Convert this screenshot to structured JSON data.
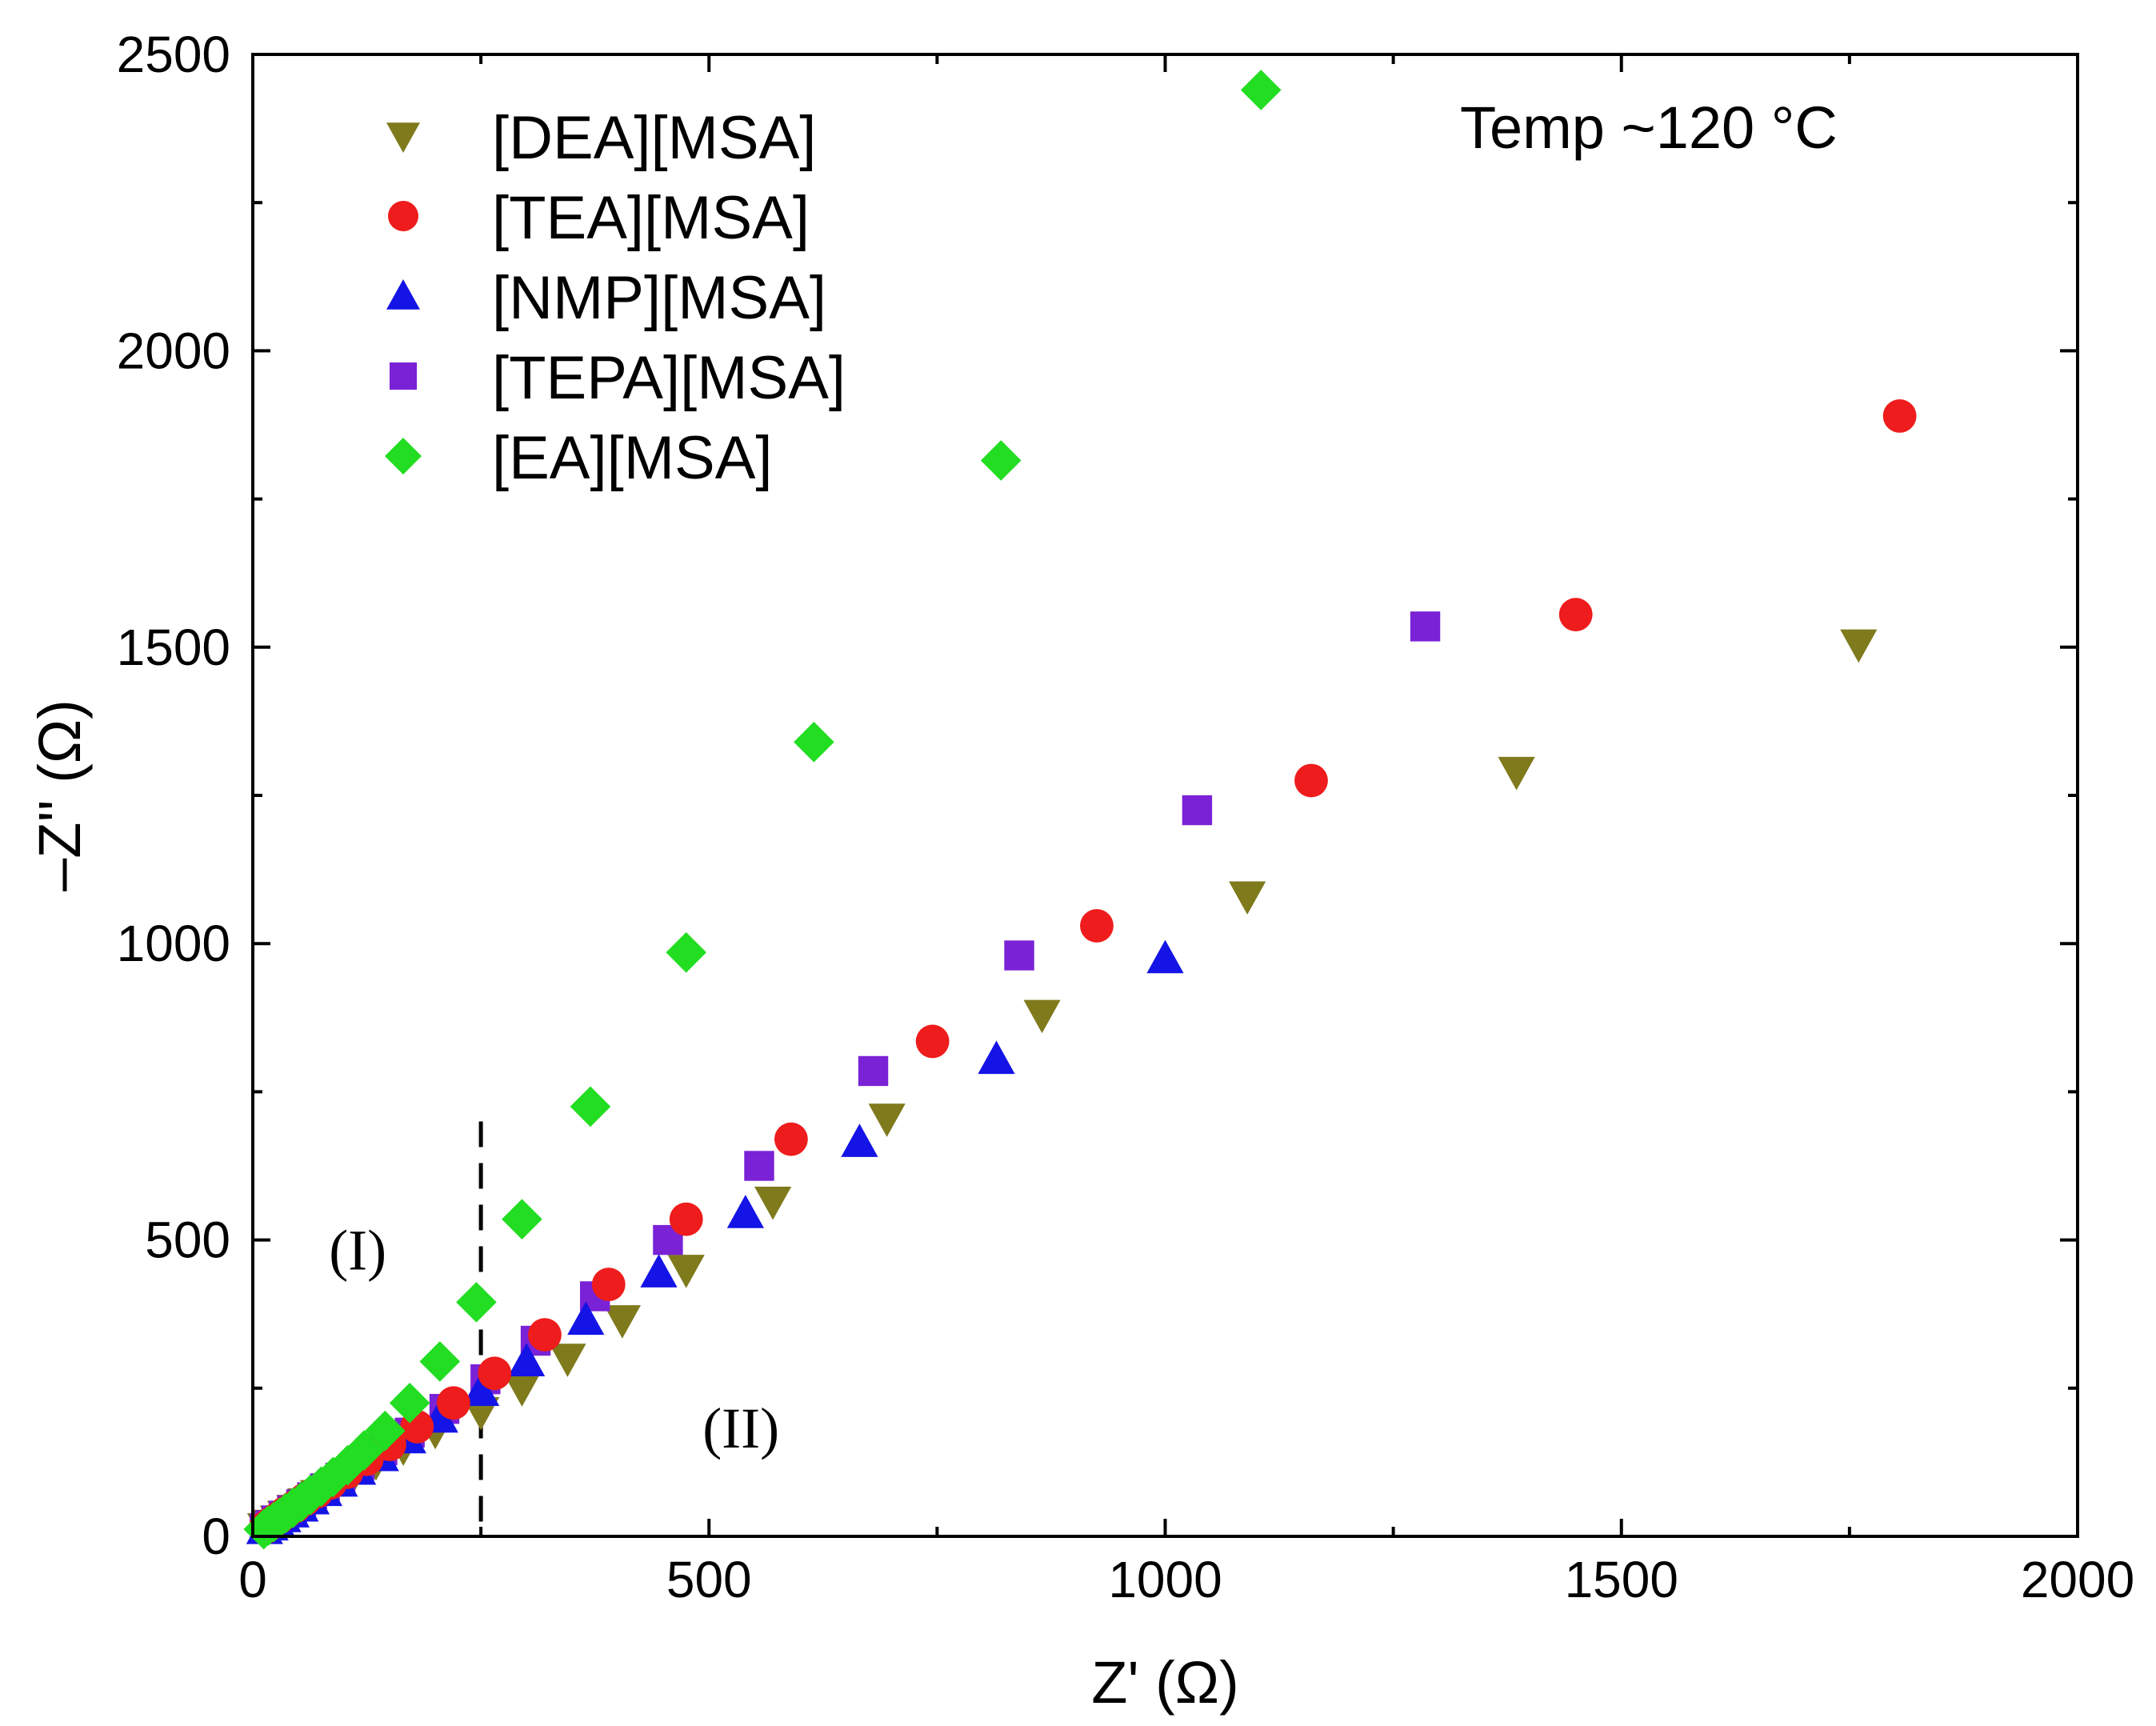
{
  "chart_data": {
    "type": "scatter",
    "title": "",
    "xlabel": "Z' (Ω)",
    "ylabel": "–Z'' (Ω)",
    "xlim": [
      0,
      2000
    ],
    "ylim": [
      0,
      2500
    ],
    "x_ticks": [
      "0",
      "500",
      "1000",
      "1500",
      "2000"
    ],
    "y_ticks": [
      "0",
      "500",
      "1000",
      "1500",
      "2000",
      "2500"
    ],
    "legend_position": "top-left",
    "annotation": "Temp ~120 °C",
    "divider_x": 250,
    "regions": [
      "(I)",
      "(II)"
    ],
    "series": [
      {
        "name": "[DEA][MSA]",
        "marker": "triangle-down",
        "color": "#7f7a1c",
        "points": [
          [
            1760,
            1505
          ],
          [
            1385,
            1290
          ],
          [
            1090,
            1080
          ],
          [
            865,
            880
          ],
          [
            695,
            705
          ],
          [
            570,
            565
          ],
          [
            475,
            450
          ],
          [
            405,
            365
          ],
          [
            345,
            300
          ],
          [
            295,
            250
          ],
          [
            250,
            210
          ],
          [
            200,
            178
          ],
          [
            165,
            150
          ],
          [
            135,
            125
          ],
          [
            110,
            103
          ],
          [
            90,
            85
          ],
          [
            72,
            70
          ],
          [
            58,
            56
          ],
          [
            46,
            45
          ],
          [
            36,
            35
          ],
          [
            28,
            27
          ],
          [
            20,
            20
          ],
          [
            14,
            14
          ]
        ]
      },
      {
        "name": "[TEA][MSA]",
        "marker": "circle",
        "color": "#ee1c1c",
        "points": [
          [
            1805,
            1890
          ],
          [
            1450,
            1555
          ],
          [
            1160,
            1275
          ],
          [
            925,
            1030
          ],
          [
            745,
            835
          ],
          [
            590,
            670
          ],
          [
            475,
            535
          ],
          [
            390,
            425
          ],
          [
            320,
            340
          ],
          [
            265,
            275
          ],
          [
            220,
            225
          ],
          [
            180,
            185
          ],
          [
            150,
            155
          ],
          [
            125,
            130
          ],
          [
            103,
            108
          ],
          [
            85,
            90
          ],
          [
            70,
            75
          ],
          [
            57,
            62
          ],
          [
            46,
            50
          ],
          [
            36,
            40
          ],
          [
            28,
            31
          ],
          [
            20,
            22
          ],
          [
            14,
            15
          ]
        ]
      },
      {
        "name": "[NMP][MSA]",
        "marker": "triangle-up",
        "color": "#1414e6",
        "points": [
          [
            1000,
            975
          ],
          [
            815,
            805
          ],
          [
            665,
            665
          ],
          [
            540,
            545
          ],
          [
            445,
            445
          ],
          [
            365,
            365
          ],
          [
            300,
            295
          ],
          [
            250,
            245
          ],
          [
            205,
            200
          ],
          [
            170,
            165
          ],
          [
            140,
            135
          ],
          [
            115,
            112
          ],
          [
            95,
            92
          ],
          [
            78,
            76
          ],
          [
            64,
            62
          ],
          [
            52,
            50
          ],
          [
            42,
            40
          ],
          [
            33,
            32
          ],
          [
            26,
            25
          ],
          [
            19,
            18
          ],
          [
            13,
            12
          ]
        ]
      },
      {
        "name": "[TEPA][MSA]",
        "marker": "square",
        "color": "#7a22d6",
        "points": [
          [
            1285,
            1535
          ],
          [
            1035,
            1225
          ],
          [
            840,
            980
          ],
          [
            680,
            785
          ],
          [
            555,
            625
          ],
          [
            455,
            500
          ],
          [
            375,
            405
          ],
          [
            310,
            330
          ],
          [
            255,
            265
          ],
          [
            210,
            215
          ],
          [
            172,
            175
          ],
          [
            142,
            145
          ],
          [
            117,
            120
          ],
          [
            96,
            99
          ],
          [
            79,
            81
          ],
          [
            65,
            66
          ],
          [
            53,
            54
          ],
          [
            43,
            44
          ],
          [
            34,
            35
          ],
          [
            26,
            27
          ],
          [
            19,
            19
          ],
          [
            13,
            13
          ]
        ]
      },
      {
        "name": "[EA][MSA]",
        "marker": "diamond",
        "color": "#22dd22",
        "points": [
          [
            1105,
            2440
          ],
          [
            820,
            1815
          ],
          [
            615,
            1340
          ],
          [
            475,
            985
          ],
          [
            370,
            725
          ],
          [
            295,
            535
          ],
          [
            245,
            395
          ],
          [
            205,
            295
          ],
          [
            172,
            225
          ],
          [
            145,
            178
          ],
          [
            122,
            145
          ],
          [
            104,
            120
          ],
          [
            88,
            100
          ],
          [
            75,
            84
          ],
          [
            63,
            70
          ],
          [
            53,
            58
          ],
          [
            44,
            48
          ],
          [
            36,
            39
          ],
          [
            29,
            31
          ],
          [
            23,
            24
          ],
          [
            17,
            18
          ],
          [
            12,
            12
          ]
        ]
      }
    ]
  }
}
